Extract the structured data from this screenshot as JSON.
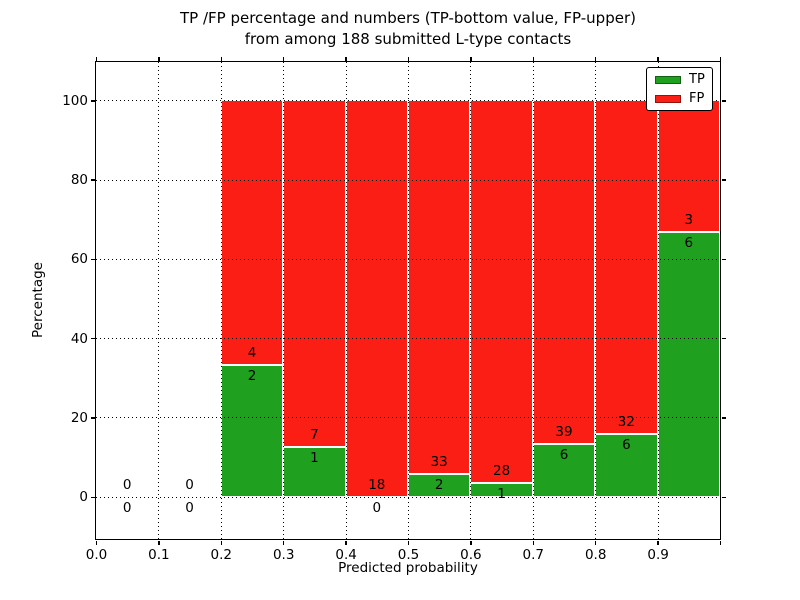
{
  "chart_data": {
    "type": "bar",
    "stacked": true,
    "title_line1": "TP /FP percentage and numbers (TP-bottom value, FP-upper)",
    "title_line2": "from among 188 submitted L-type contacts",
    "xlabel": "Predicted probability",
    "ylabel": "Percentage",
    "xlim": [
      0.0,
      1.0
    ],
    "ylim": [
      -10.65,
      109.65
    ],
    "x_ticks": [
      0.0,
      0.1,
      0.2,
      0.3,
      0.4,
      0.5,
      0.6,
      0.7,
      0.8,
      0.9,
      1.0
    ],
    "x_tick_labels": [
      "0.0",
      "0.1",
      "0.2",
      "0.3",
      "0.4",
      "0.5",
      "0.6",
      "0.7",
      "0.8",
      "0.9",
      ""
    ],
    "y_ticks": [
      0,
      20,
      40,
      60,
      80,
      100
    ],
    "y_tick_labels": [
      "0",
      "20",
      "40",
      "60",
      "80",
      "100"
    ],
    "grid": {
      "on": true,
      "style": "dotted",
      "color": "#000000",
      "above_bars": true
    },
    "legend": {
      "position": "upper-right",
      "entries": [
        {
          "label": "TP",
          "color": "#1fa01f"
        },
        {
          "label": "FP",
          "color": "#fb1e14"
        }
      ]
    },
    "total_submitted": 188,
    "bins": [
      {
        "x0": 0.0,
        "x1": 0.1,
        "tp": 0,
        "fp": 0,
        "tp_pct": 0.0
      },
      {
        "x0": 0.1,
        "x1": 0.2,
        "tp": 0,
        "fp": 0,
        "tp_pct": 0.0
      },
      {
        "x0": 0.2,
        "x1": 0.3,
        "tp": 2,
        "fp": 4,
        "tp_pct": 33.33
      },
      {
        "x0": 0.3,
        "x1": 0.4,
        "tp": 1,
        "fp": 7,
        "tp_pct": 12.5
      },
      {
        "x0": 0.4,
        "x1": 0.5,
        "tp": 0,
        "fp": 18,
        "tp_pct": 0.0
      },
      {
        "x0": 0.5,
        "x1": 0.6,
        "tp": 2,
        "fp": 33,
        "tp_pct": 5.71
      },
      {
        "x0": 0.6,
        "x1": 0.7,
        "tp": 1,
        "fp": 28,
        "tp_pct": 3.45
      },
      {
        "x0": 0.7,
        "x1": 0.8,
        "tp": 6,
        "fp": 39,
        "tp_pct": 13.33
      },
      {
        "x0": 0.8,
        "x1": 0.9,
        "tp": 6,
        "fp": 32,
        "tp_pct": 15.79
      },
      {
        "x0": 0.9,
        "x1": 1.0,
        "tp": 6,
        "fp": 3,
        "tp_pct": 66.67
      }
    ],
    "colors": {
      "tp": "#1fa01f",
      "fp": "#fb1e14",
      "bar_edge": "#ffffff",
      "spine": "#000000",
      "text": "#000000",
      "background": "#ffffff"
    }
  }
}
